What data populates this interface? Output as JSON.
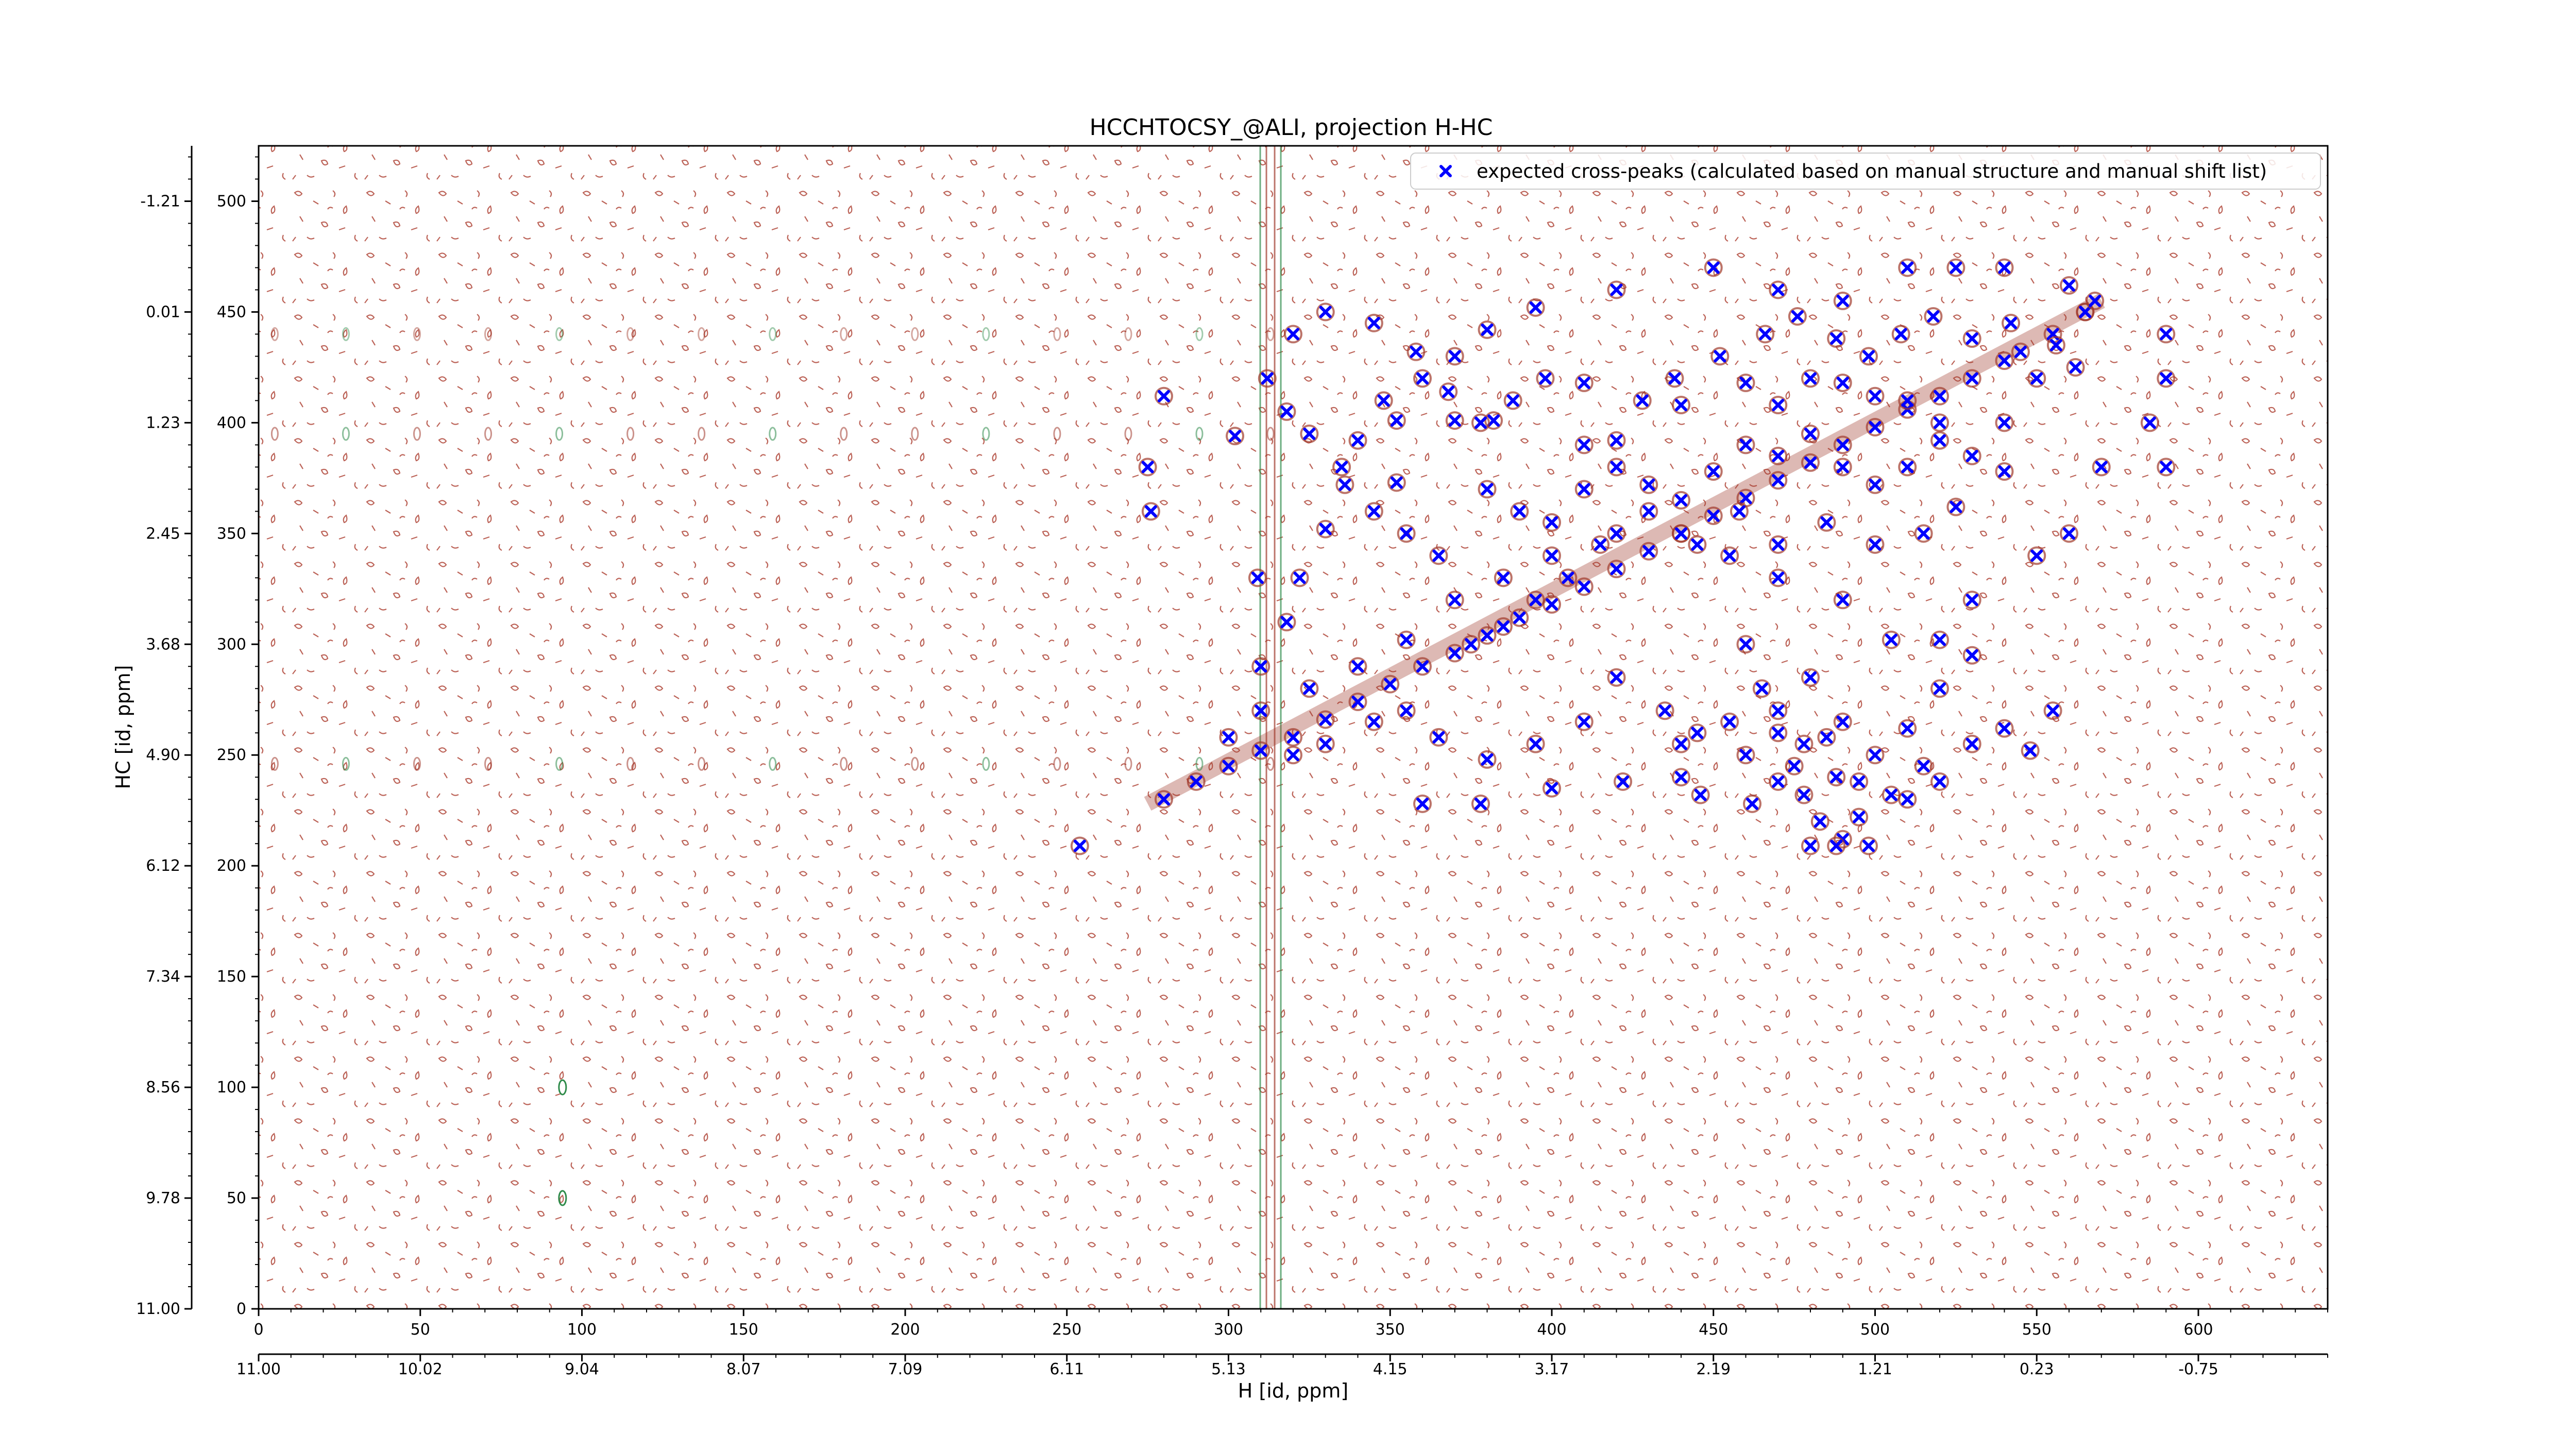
{
  "chart_data": {
    "type": "scatter",
    "title": "HCCHTOCSY_@ALI, projection H-HC",
    "xlabel": "H [id, ppm]",
    "ylabel": "HC [id, ppm]",
    "x_index_range": [
      0,
      640
    ],
    "y_index_range": [
      0,
      525
    ],
    "x_index_ticks": [
      "0",
      "50",
      "100",
      "150",
      "200",
      "250",
      "300",
      "350",
      "400",
      "450",
      "500",
      "550",
      "600"
    ],
    "x_ppm_ticks": [
      "11.00",
      "10.02",
      "9.04",
      "8.07",
      "7.09",
      "6.11",
      "5.13",
      "4.15",
      "3.17",
      "2.19",
      "1.21",
      "0.23",
      "-0.75"
    ],
    "y_index_ticks": [
      "0",
      "50",
      "100",
      "150",
      "200",
      "250",
      "300",
      "350",
      "400",
      "450",
      "500"
    ],
    "y_ppm_ticks": [
      "11.00",
      "9.78",
      "8.56",
      "7.34",
      "6.12",
      "4.90",
      "3.68",
      "2.45",
      "1.23",
      "0.01",
      "-1.21"
    ],
    "legend": {
      "position": "top-right",
      "entries": [
        {
          "label": "expected cross-peaks (calculated based on manual structure and manual shift list)",
          "marker": "x",
          "color": "#0000ff"
        }
      ]
    },
    "contour_colors": {
      "positive": "#a0392b",
      "negative": "#2e8b4a"
    },
    "series": [
      {
        "name": "expected cross-peaks (calculated based on manual structure and manual shift list)",
        "color": "#0000ff",
        "marker": "x",
        "points": [
          [
            280,
            230
          ],
          [
            290,
            238
          ],
          [
            300,
            245
          ],
          [
            310,
            252
          ],
          [
            320,
            258
          ],
          [
            330,
            266
          ],
          [
            340,
            274
          ],
          [
            350,
            282
          ],
          [
            360,
            290
          ],
          [
            370,
            296
          ],
          [
            380,
            304
          ],
          [
            390,
            312
          ],
          [
            400,
            318
          ],
          [
            410,
            326
          ],
          [
            420,
            334
          ],
          [
            430,
            342
          ],
          [
            440,
            350
          ],
          [
            450,
            358
          ],
          [
            460,
            366
          ],
          [
            470,
            374
          ],
          [
            480,
            382
          ],
          [
            490,
            390
          ],
          [
            500,
            398
          ],
          [
            510,
            406
          ],
          [
            520,
            412
          ],
          [
            530,
            420
          ],
          [
            540,
            428
          ],
          [
            555,
            440
          ],
          [
            565,
            450
          ],
          [
            254,
            209
          ],
          [
            280,
            412
          ],
          [
            275,
            380
          ],
          [
            276,
            360
          ],
          [
            309,
            330
          ],
          [
            302,
            394
          ],
          [
            352,
            373
          ],
          [
            352,
            401
          ],
          [
            370,
            401
          ],
          [
            382,
            401
          ],
          [
            410,
            390
          ],
          [
            420,
            392
          ],
          [
            440,
            408
          ],
          [
            460,
            418
          ],
          [
            470,
            408
          ],
          [
            480,
            420
          ],
          [
            490,
            418
          ],
          [
            500,
            412
          ],
          [
            510,
            410
          ],
          [
            520,
            400
          ],
          [
            540,
            400
          ],
          [
            545,
            432
          ],
          [
            550,
            420
          ],
          [
            565,
            450
          ],
          [
            590,
            440
          ],
          [
            590,
            420
          ],
          [
            585,
            400
          ],
          [
            590,
            380
          ],
          [
            570,
            380
          ],
          [
            560,
            350
          ],
          [
            550,
            340
          ],
          [
            530,
            320
          ],
          [
            520,
            302
          ],
          [
            505,
            302
          ],
          [
            490,
            320
          ],
          [
            470,
            330
          ],
          [
            455,
            340
          ],
          [
            440,
            350
          ],
          [
            420,
            350
          ],
          [
            400,
            340
          ],
          [
            385,
            330
          ],
          [
            370,
            320
          ],
          [
            355,
            302
          ],
          [
            340,
            290
          ],
          [
            325,
            280
          ],
          [
            310,
            270
          ],
          [
            300,
            258
          ],
          [
            310,
            290
          ],
          [
            318,
            310
          ],
          [
            322,
            330
          ],
          [
            330,
            352
          ],
          [
            336,
            372
          ],
          [
            340,
            392
          ],
          [
            348,
            410
          ],
          [
            360,
            420
          ],
          [
            370,
            430
          ],
          [
            380,
            442
          ],
          [
            395,
            452
          ],
          [
            420,
            460
          ],
          [
            450,
            470
          ],
          [
            470,
            460
          ],
          [
            490,
            455
          ],
          [
            510,
            470
          ],
          [
            525,
            470
          ],
          [
            540,
            470
          ],
          [
            560,
            462
          ],
          [
            568,
            455
          ],
          [
            460,
            300
          ],
          [
            465,
            280
          ],
          [
            470,
            260
          ],
          [
            475,
            245
          ],
          [
            478,
            232
          ],
          [
            483,
            220
          ],
          [
            490,
            212
          ],
          [
            495,
            222
          ],
          [
            488,
            240
          ],
          [
            478,
            255
          ],
          [
            470,
            270
          ],
          [
            480,
            285
          ],
          [
            490,
            265
          ],
          [
            500,
            250
          ],
          [
            510,
            262
          ],
          [
            520,
            280
          ],
          [
            530,
            295
          ],
          [
            540,
            262
          ],
          [
            548,
            252
          ],
          [
            555,
            270
          ],
          [
            530,
            255
          ],
          [
            515,
            245
          ],
          [
            505,
            232
          ],
          [
            495,
            238
          ],
          [
            485,
            258
          ],
          [
            470,
            238
          ],
          [
            460,
            250
          ],
          [
            445,
            260
          ],
          [
            435,
            270
          ],
          [
            420,
            285
          ],
          [
            410,
            265
          ],
          [
            395,
            255
          ],
          [
            380,
            248
          ],
          [
            365,
            258
          ],
          [
            355,
            270
          ],
          [
            345,
            265
          ],
          [
            330,
            255
          ],
          [
            320,
            250
          ],
          [
            360,
            228
          ],
          [
            378,
            228
          ],
          [
            400,
            235
          ],
          [
            422,
            238
          ],
          [
            446,
            232
          ],
          [
            462,
            228
          ],
          [
            480,
            209
          ],
          [
            488,
            209
          ],
          [
            498,
            209
          ],
          [
            440,
            255
          ],
          [
            455,
            265
          ],
          [
            440,
            240
          ],
          [
            510,
            230
          ],
          [
            520,
            238
          ],
          [
            380,
            370
          ],
          [
            390,
            360
          ],
          [
            400,
            355
          ],
          [
            410,
            370
          ],
          [
            420,
            380
          ],
          [
            430,
            372
          ],
          [
            440,
            365
          ],
          [
            450,
            378
          ],
          [
            460,
            390
          ],
          [
            470,
            385
          ],
          [
            480,
            395
          ],
          [
            490,
            380
          ],
          [
            500,
            372
          ],
          [
            510,
            380
          ],
          [
            520,
            392
          ],
          [
            530,
            385
          ],
          [
            540,
            378
          ],
          [
            525,
            362
          ],
          [
            515,
            350
          ],
          [
            500,
            345
          ],
          [
            485,
            355
          ],
          [
            470,
            345
          ],
          [
            458,
            360
          ],
          [
            445,
            345
          ],
          [
            430,
            360
          ],
          [
            415,
            345
          ],
          [
            405,
            330
          ],
          [
            395,
            320
          ],
          [
            385,
            308
          ],
          [
            375,
            300
          ],
          [
            365,
            340
          ],
          [
            355,
            350
          ],
          [
            345,
            360
          ],
          [
            335,
            380
          ],
          [
            325,
            395
          ],
          [
            318,
            405
          ],
          [
            312,
            420
          ],
          [
            320,
            440
          ],
          [
            330,
            450
          ],
          [
            345,
            445
          ],
          [
            358,
            432
          ],
          [
            368,
            414
          ],
          [
            378,
            400
          ],
          [
            388,
            410
          ],
          [
            398,
            420
          ],
          [
            410,
            418
          ],
          [
            428,
            410
          ],
          [
            438,
            420
          ],
          [
            452,
            430
          ],
          [
            466,
            440
          ],
          [
            476,
            448
          ],
          [
            488,
            438
          ],
          [
            498,
            430
          ],
          [
            508,
            440
          ],
          [
            518,
            448
          ],
          [
            530,
            438
          ],
          [
            542,
            445
          ],
          [
            556,
            435
          ],
          [
            562,
            425
          ]
        ]
      }
    ]
  }
}
